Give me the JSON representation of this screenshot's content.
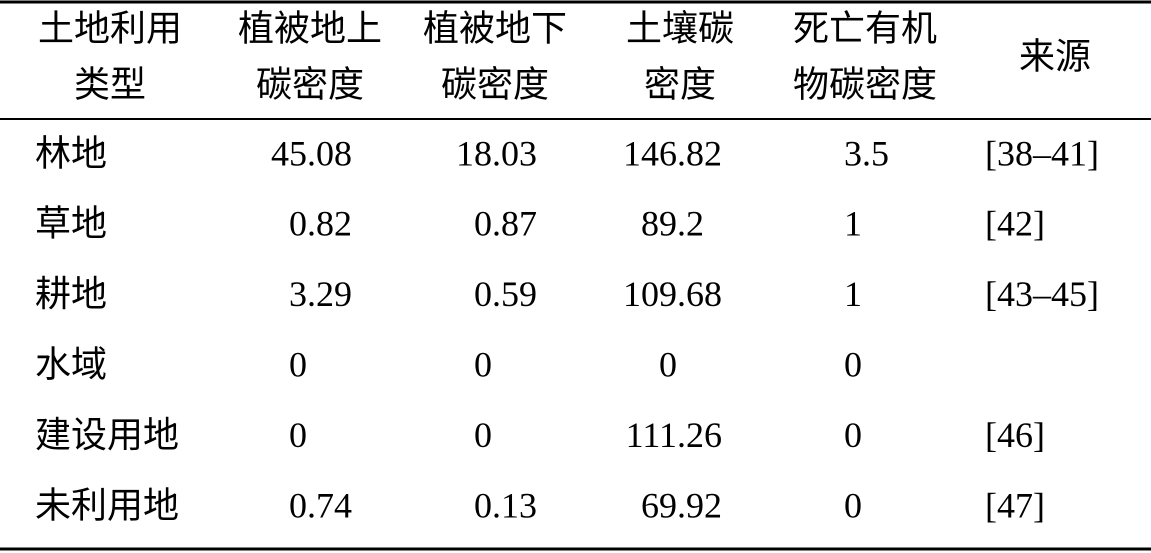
{
  "table": {
    "header": [
      [
        "土地利用",
        "类型"
      ],
      [
        "植被地上",
        "碳密度"
      ],
      [
        "植被地下",
        "碳密度"
      ],
      [
        "土壤碳",
        "密度"
      ],
      [
        "死亡有机",
        "物碳密度"
      ],
      [
        "来源"
      ]
    ],
    "rows": [
      [
        "林地",
        "45.08",
        "18.03",
        "146.82",
        "3.5",
        "[38–41]"
      ],
      [
        "草地",
        "0.82",
        "0.87",
        "89.2",
        "1",
        "[42]"
      ],
      [
        "耕地",
        "3.29",
        "0.59",
        "109.68",
        "1",
        "[43–45]"
      ],
      [
        "水域",
        "0",
        "0",
        "0",
        "0",
        null
      ],
      [
        "建设用地",
        "0",
        "0",
        "111.26",
        "0",
        "[46]"
      ],
      [
        "未利用地",
        "0.74",
        "0.13",
        "69.92",
        "0",
        "[47]"
      ]
    ]
  }
}
